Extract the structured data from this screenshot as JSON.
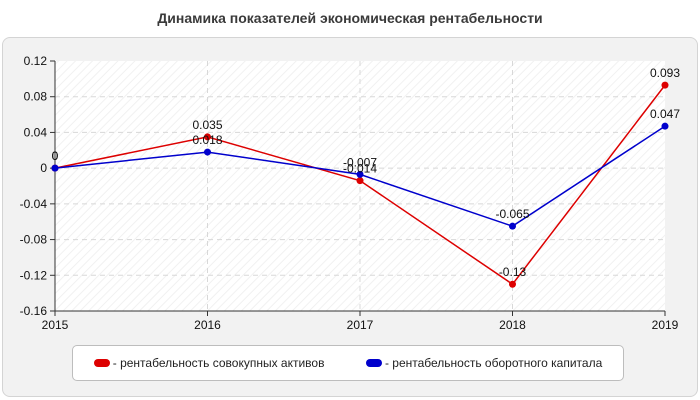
{
  "chart_data": {
    "type": "line",
    "title": "Динамика показателей экономическая рентабельности",
    "x": [
      "2015",
      "2016",
      "2017",
      "2018",
      "2019"
    ],
    "ylim": [
      -0.16,
      0.12
    ],
    "yticks": [
      "0.12",
      "0.08",
      "0.04",
      "0",
      "-0.04",
      "-0.08",
      "-0.12",
      "-0.16"
    ],
    "grid": true,
    "legend_position": "bottom",
    "series": [
      {
        "name": "- рентабельность совокупных активов",
        "color": "#dd0000",
        "values": [
          0,
          0.035,
          -0.014,
          -0.13,
          0.093
        ],
        "labels": [
          "0",
          "0.035",
          "-0.014",
          "-0.13",
          "0.093"
        ]
      },
      {
        "name": "- рентабельность оборотного капитала",
        "color": "#0000cc",
        "values": [
          0,
          0.018,
          -0.007,
          -0.065,
          0.047
        ],
        "labels": [
          "0",
          "0.018",
          "-0.007",
          "-0.065",
          "0.047"
        ]
      }
    ]
  }
}
